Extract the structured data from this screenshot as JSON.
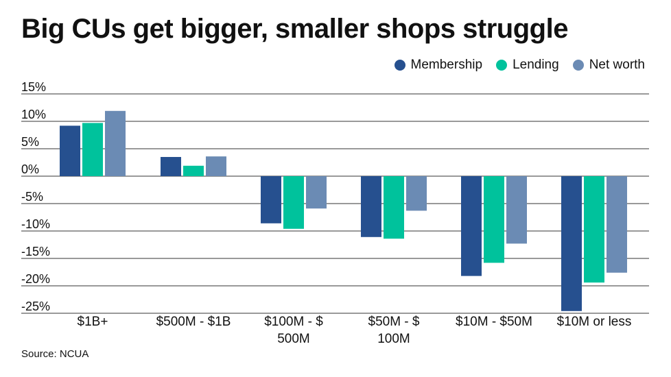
{
  "chart_data": {
    "type": "bar",
    "title": "Big CUs get bigger, smaller shops struggle",
    "source": "Source: NCUA",
    "categories": [
      [
        "$1B+"
      ],
      [
        "$500M - $1B"
      ],
      [
        "$100M - $",
        "500M"
      ],
      [
        "$50M - $",
        "100M"
      ],
      [
        "$10M - $50M"
      ],
      [
        "$10M or less"
      ]
    ],
    "series": [
      {
        "name": "Membership",
        "color": "#26508f",
        "values": [
          9.2,
          3.5,
          -8.6,
          -11.1,
          -18.2,
          -24.6
        ]
      },
      {
        "name": "Lending",
        "color": "#00c29c",
        "values": [
          9.7,
          1.9,
          -9.6,
          -11.4,
          -15.8,
          -19.4
        ]
      },
      {
        "name": "Net worth",
        "color": "#6b8bb4",
        "values": [
          11.9,
          3.6,
          -5.9,
          -6.3,
          -12.3,
          -17.6
        ]
      }
    ],
    "y_ticks": [
      "15%",
      "10%",
      "5%",
      "0%",
      "-5%",
      "-10%",
      "-15%",
      "-20%",
      "-25%"
    ],
    "ylim": [
      -25,
      15
    ],
    "grid": true,
    "legend_position": "top-right"
  }
}
